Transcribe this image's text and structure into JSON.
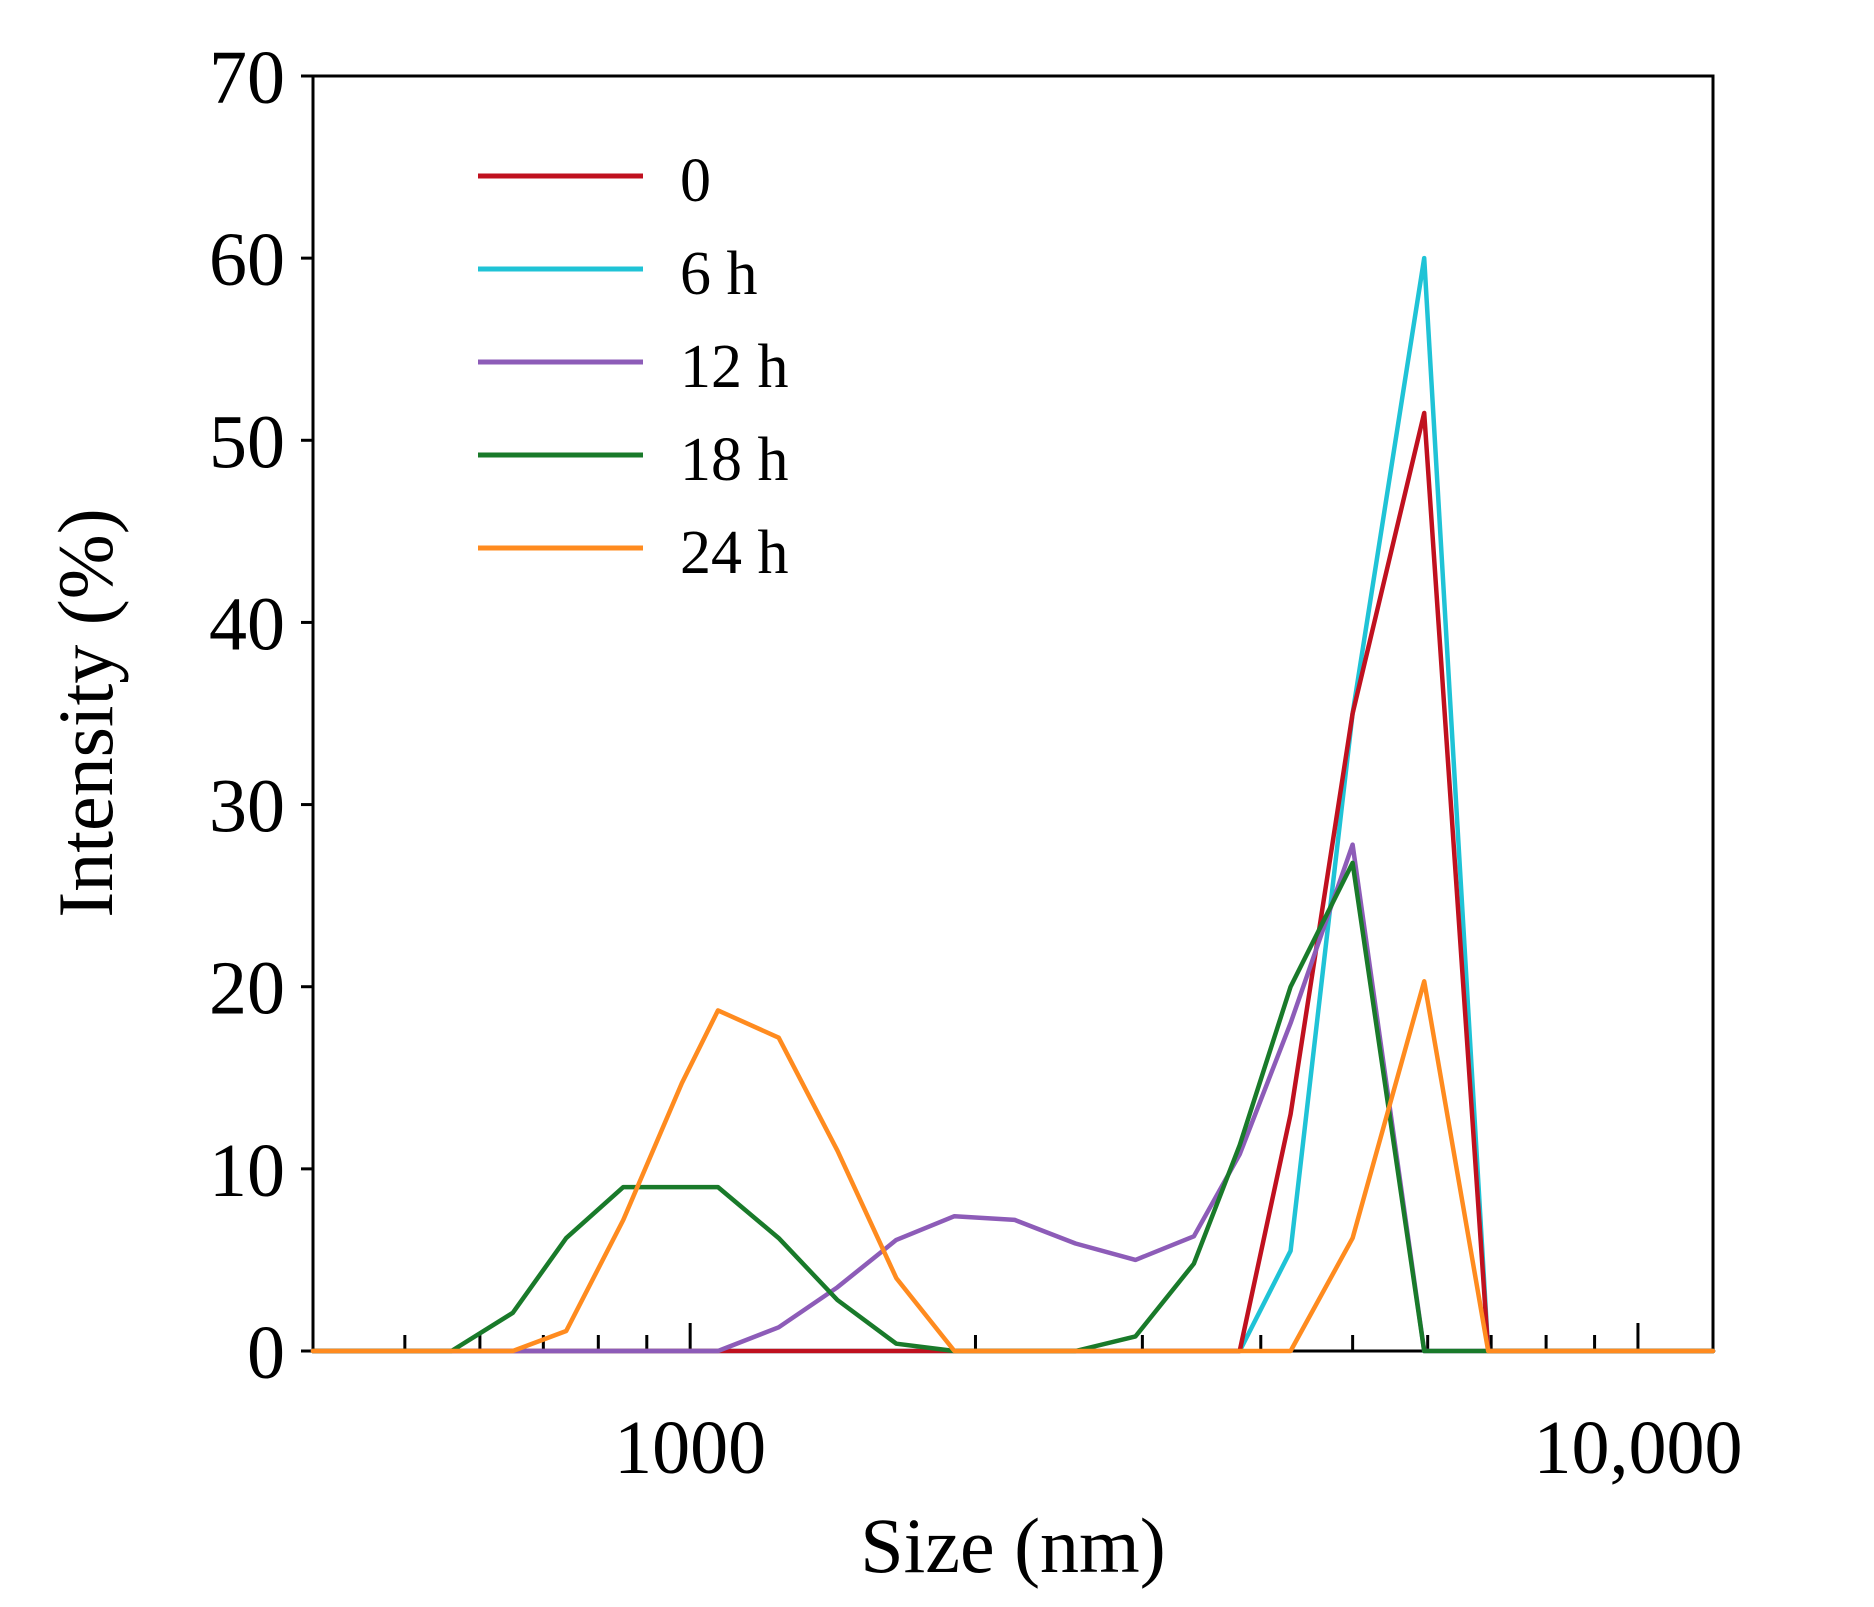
{
  "chart_data": {
    "type": "line",
    "title": "",
    "xlabel": "Size (nm)",
    "ylabel": "Intensity (%)",
    "xscale": "log",
    "xlim": [
      400,
      12000
    ],
    "ylim": [
      0,
      70
    ],
    "yticks": [
      0,
      10,
      20,
      30,
      40,
      50,
      60,
      70
    ],
    "xtick_labels": [
      {
        "value": 1000,
        "label": "1000"
      },
      {
        "value": 10000,
        "label": "10,000"
      }
    ],
    "grid": false,
    "legend_position": "top-left",
    "series": [
      {
        "name": "0",
        "color": "#c0111f",
        "x": [
          400,
          3800,
          4300,
          5000,
          5950,
          6950,
          12000
        ],
        "y": [
          0,
          0,
          13,
          35,
          51.5,
          0,
          0
        ]
      },
      {
        "name": "6 h",
        "color": "#1fc3d6",
        "x": [
          400,
          3800,
          4300,
          5000,
          5950,
          6950,
          12000
        ],
        "y": [
          0,
          0,
          5.5,
          35,
          60,
          0,
          0
        ]
      },
      {
        "name": "12 h",
        "color": "#8d5cb8",
        "x": [
          400,
          1070,
          1240,
          1430,
          1650,
          1900,
          2200,
          2550,
          2950,
          3400,
          3800,
          4300,
          5000,
          5950,
          6950,
          12000
        ],
        "y": [
          0,
          0,
          1.3,
          3.5,
          6.1,
          7.4,
          7.2,
          5.9,
          5.0,
          6.3,
          10.8,
          18.0,
          27.8,
          0,
          0,
          0
        ]
      },
      {
        "name": "18 h",
        "color": "#197a2a",
        "x": [
          400,
          560,
          650,
          740,
          850,
          980,
          1070,
          1240,
          1430,
          1650,
          1900,
          2200,
          2550,
          2950,
          3400,
          3800,
          4300,
          5000,
          5950,
          6950,
          12000
        ],
        "y": [
          0,
          0,
          2.1,
          6.2,
          9.0,
          9.0,
          9.0,
          6.2,
          2.8,
          0.4,
          0,
          0,
          0,
          0.8,
          4.8,
          11.3,
          20.0,
          26.8,
          0,
          0,
          0
        ]
      },
      {
        "name": "24 h",
        "color": "#ff8b1f",
        "x": [
          400,
          650,
          740,
          850,
          980,
          1070,
          1240,
          1430,
          1650,
          1900,
          2200,
          2550,
          2950,
          3400,
          3800,
          4300,
          5000,
          5950,
          6950,
          12000
        ],
        "y": [
          0,
          0,
          1.1,
          7.2,
          14.7,
          18.7,
          17.2,
          11.0,
          4.0,
          0,
          0,
          0,
          0,
          0,
          0,
          0,
          6.2,
          20.3,
          0,
          0
        ]
      }
    ]
  }
}
